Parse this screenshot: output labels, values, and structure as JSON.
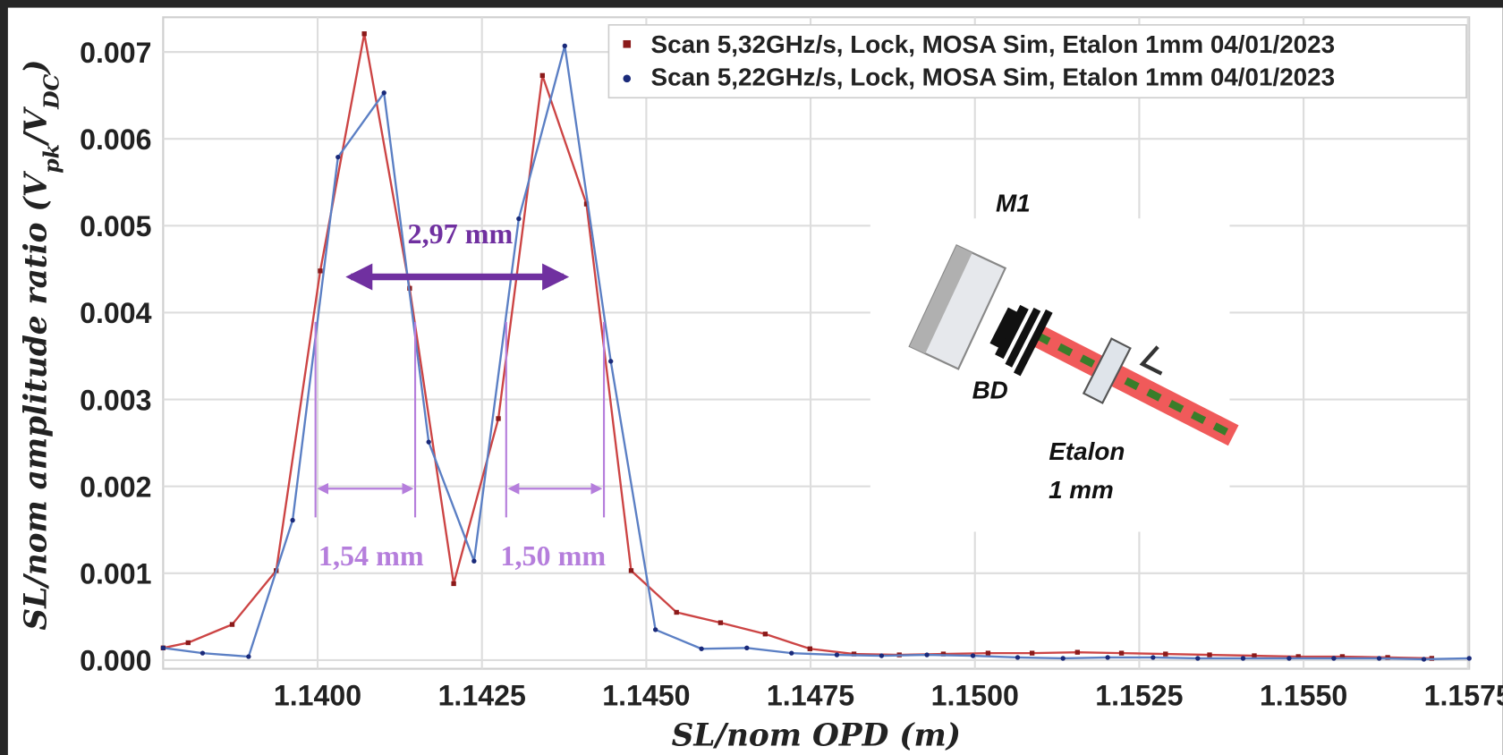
{
  "chart_data": {
    "type": "line",
    "xlabel": "SL/nom OPD (m)",
    "ylabel_parts": [
      "SL/nom amplitude ratio (V",
      "pk",
      "/V",
      "DC",
      ")"
    ],
    "xlim": [
      1.13765,
      1.15752
    ],
    "ylim": [
      -0.0001,
      0.0074
    ],
    "xticks": [
      {
        "value": 1.14,
        "label": "1.1400"
      },
      1.1425,
      {
        "value": 1.145,
        "label": "1.1450"
      },
      1.1475,
      {
        "value": 1.15,
        "label": "1.1500"
      },
      1.1525,
      {
        "value": 1.155,
        "label": "1.1550"
      },
      1.1575
    ],
    "yticks": [
      {
        "value": 0,
        "label": "0.000"
      },
      0.001,
      0.002,
      0.003,
      0.004,
      0.005,
      0.006,
      0.007
    ],
    "grid": true,
    "legend": "upper right",
    "series": [
      {
        "name": "Scan 5,32GHz/s, Lock, MOSA Sim, Etalon 1mm 04/01/2023",
        "color": "#cc4444",
        "marker": "square",
        "marker_color": "#8b1a1a",
        "x": [
          1.13765,
          1.13803,
          1.1387,
          1.13937,
          1.14004,
          1.14071,
          1.1414,
          1.14207,
          1.14275,
          1.14342,
          1.14409,
          1.14477,
          1.14546,
          1.14613,
          1.14681,
          1.14749,
          1.14816,
          1.14885,
          1.14952,
          1.1502,
          1.15087,
          1.15156,
          1.15223,
          1.1529,
          1.15357,
          1.15425,
          1.15492,
          1.15559,
          1.15628,
          1.15695
        ],
        "values": [
          0.00014,
          0.0002,
          0.00041,
          0.00103,
          0.00448,
          0.00721,
          0.00428,
          0.00088,
          0.00278,
          0.00673,
          0.00525,
          0.00103,
          0.00055,
          0.00043,
          0.0003,
          0.00013,
          7e-05,
          6e-05,
          7e-05,
          8e-05,
          8e-05,
          9e-05,
          8e-05,
          7e-05,
          6e-05,
          5e-05,
          4e-05,
          4e-05,
          3e-05,
          2e-05
        ]
      },
      {
        "name": "Scan 5,22GHz/s, Lock, MOSA Sim, Etalon 1mm 04/01/2023",
        "color": "#5b7fc4",
        "marker": "circle",
        "marker_color": "#1a2a7a",
        "x": [
          1.13765,
          1.13825,
          1.13895,
          1.13962,
          1.14031,
          1.14101,
          1.14169,
          1.14238,
          1.14306,
          1.14376,
          1.14446,
          1.14514,
          1.14584,
          1.14653,
          1.14721,
          1.1479,
          1.14858,
          1.14927,
          1.14997,
          1.15065,
          1.15134,
          1.15202,
          1.15271,
          1.15339,
          1.15408,
          1.15478,
          1.15546,
          1.15615,
          1.15683,
          1.15752
        ],
        "values": [
          0.00014,
          8e-05,
          4e-05,
          0.00161,
          0.00579,
          0.00653,
          0.00251,
          0.00114,
          0.00508,
          0.00707,
          0.00344,
          0.00035,
          0.00013,
          0.00014,
          8e-05,
          6e-05,
          5e-05,
          6e-05,
          5e-05,
          3e-05,
          2e-05,
          3e-05,
          3e-05,
          2e-05,
          2e-05,
          2e-05,
          2e-05,
          2e-05,
          1e-05,
          2e-05
        ]
      }
    ],
    "annotations": {
      "total": "2,97 mm",
      "left_width": "1,54 mm",
      "right_width": "1,50 mm"
    },
    "inset": {
      "mirror": "M1",
      "dump": "BD",
      "etalon": [
        "Etalon",
        "1 mm"
      ]
    }
  }
}
